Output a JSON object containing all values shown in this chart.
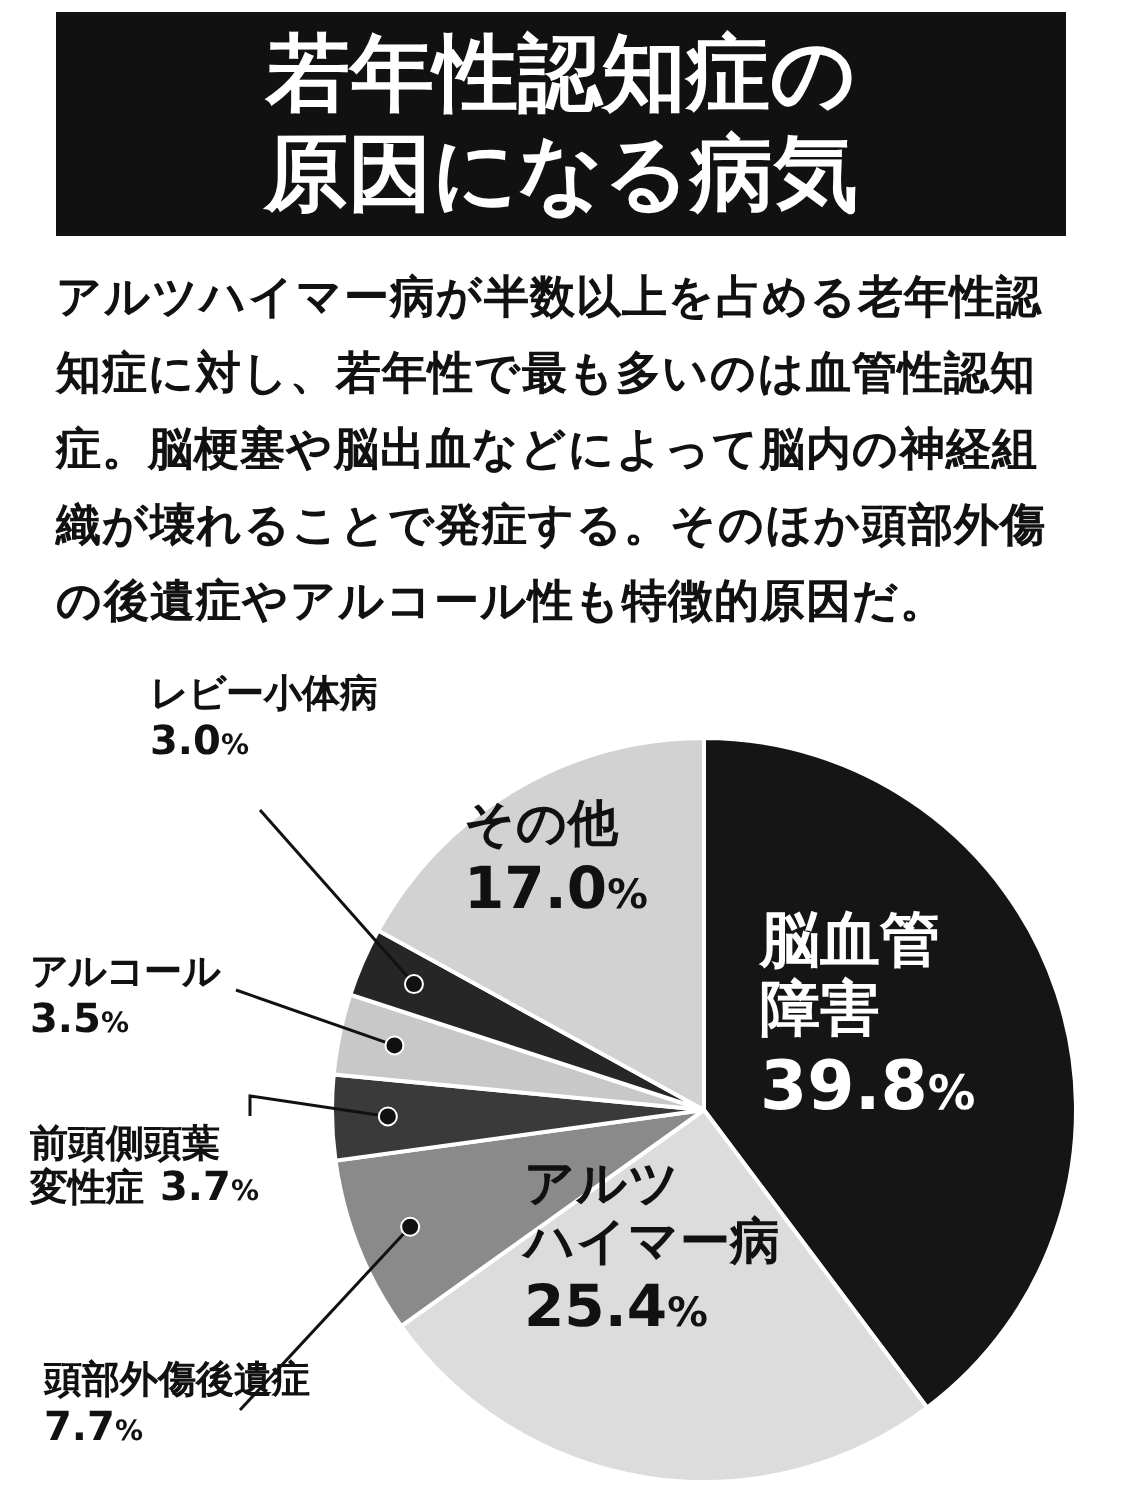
{
  "chart_data": {
    "type": "pie",
    "title": "若年性認知症の原因になる病気",
    "subtitle": "アルツハイマー病が半数以上を占める老年性認知症に対し、若年性で最も多いのは血管性認知症。脳梗塞や脳出血などによって脳内の神経組織が壊れることで発症する。そのほか頭部外傷の後遺症やアルコール性も特徴的原因だ。",
    "categories": [
      "脳血管障害",
      "アルツハイマー病",
      "頭部外傷後遺症",
      "前頭側頭葉変性症",
      "アルコール",
      "レビー小体病",
      "その他"
    ],
    "values": [
      39.8,
      25.4,
      7.7,
      3.7,
      3.5,
      3.0,
      17.0
    ],
    "value_labels": [
      "39.8%",
      "25.4%",
      "7.7%",
      "3.7%",
      "3.5%",
      "3.0%",
      "17.0%"
    ],
    "colors": [
      "#151515",
      "#dcdcdc",
      "#8a8a8a",
      "#3a3a3a",
      "#c8c8c8",
      "#262626",
      "#d2d2d2"
    ]
  }
}
